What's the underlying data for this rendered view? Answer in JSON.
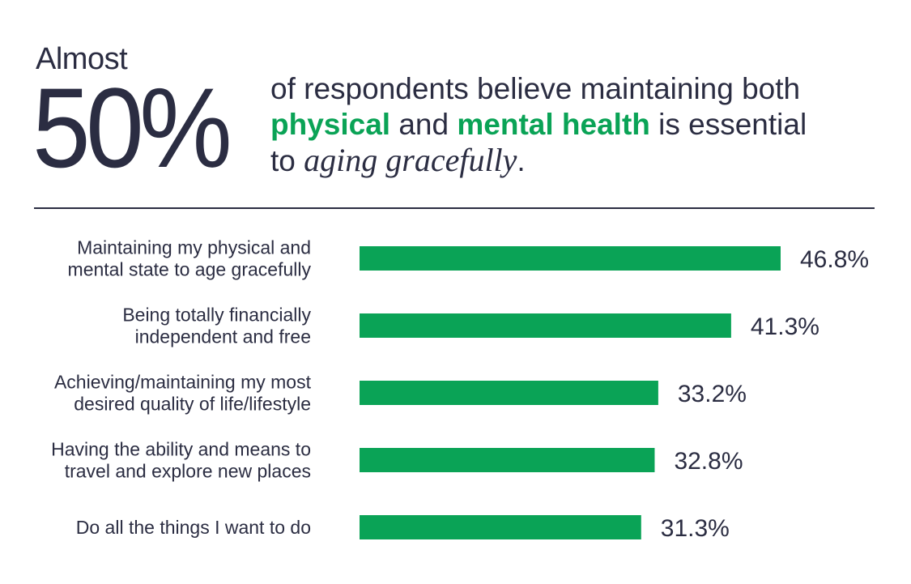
{
  "headline": {
    "prefix": "Almost",
    "big_number": "50%",
    "line1": "of respondents believe maintaining both",
    "line2_hl1": "physical",
    "line2_mid": " and ",
    "line2_hl2": "mental health",
    "line2_end": " is essential",
    "line3_start": "to ",
    "line3_italic": "aging gracefully",
    "line3_end": "."
  },
  "colors": {
    "accent": "#0aa356",
    "text": "#2b2d42",
    "bar": "#0aa356"
  },
  "chart_data": {
    "type": "bar",
    "orientation": "horizontal",
    "categories": [
      [
        "Maintaining my physical and",
        "mental state to age gracefully"
      ],
      [
        "Being totally financially",
        "independent and free"
      ],
      [
        "Achieving/maintaining my most",
        "desired quality of life/lifestyle"
      ],
      [
        "Having the ability and means to",
        "travel and explore new places"
      ],
      [
        "Do all the things I want to do"
      ]
    ],
    "values": [
      46.8,
      41.3,
      33.2,
      32.8,
      31.3
    ],
    "value_labels": [
      "46.8%",
      "41.3%",
      "33.2%",
      "32.8%",
      "31.3%"
    ],
    "xlim": [
      0,
      46.8
    ],
    "grid": false,
    "legend": "none"
  }
}
